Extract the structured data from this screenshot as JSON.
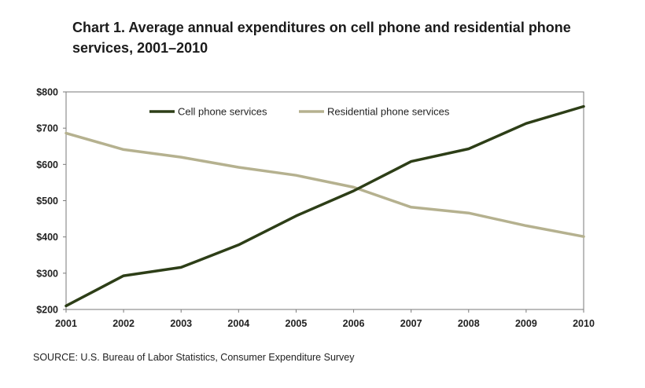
{
  "chart_data": {
    "type": "line",
    "title": "Chart 1.  Average annual  expenditures on cell phone and residential phone services, 2001–2010",
    "source": "SOURCE: U.S. Bureau of Labor Statistics,  Consumer Expenditure Survey",
    "x": [
      "2001",
      "2002",
      "2003",
      "2004",
      "2005",
      "2006",
      "2007",
      "2008",
      "2009",
      "2010"
    ],
    "y_ticks": [
      "$200",
      "$300",
      "$400",
      "$500",
      "$600",
      "$700",
      "$800"
    ],
    "ylim": [
      200,
      800
    ],
    "legend_position": "top",
    "grid": false,
    "series": [
      {
        "name": "Cell phone services",
        "color": "#2d3e17",
        "values": [
          210,
          293,
          316,
          378,
          458,
          527,
          608,
          643,
          713,
          760
        ]
      },
      {
        "name": "Residential phone services",
        "color": "#b5b18f",
        "values": [
          686,
          641,
          620,
          592,
          570,
          537,
          482,
          466,
          431,
          401
        ]
      }
    ]
  }
}
